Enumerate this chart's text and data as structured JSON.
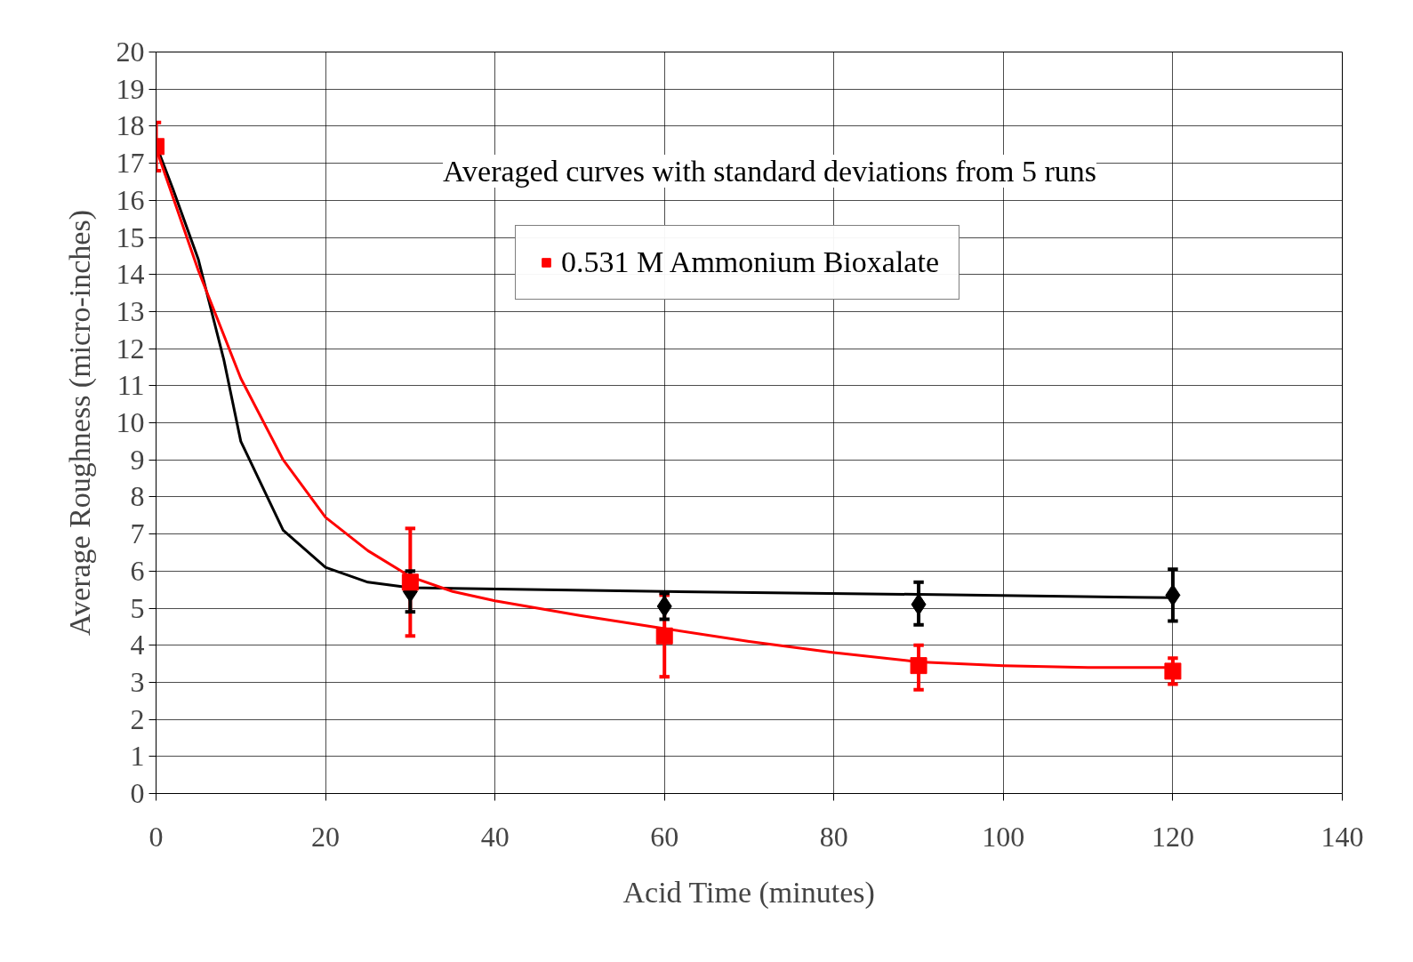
{
  "chart_data": {
    "type": "scatter",
    "xlabel": "Acid Time (minutes)",
    "ylabel": "Average Roughness (micro-inches)",
    "annotations": [
      "Averaged curves with standard deviations from 5 runs"
    ],
    "xlim": [
      0,
      140
    ],
    "xticks": [
      0,
      20,
      40,
      60,
      80,
      100,
      120,
      140
    ],
    "ylim": [
      0,
      20
    ],
    "yticks": [
      0,
      1,
      2,
      3,
      4,
      5,
      6,
      7,
      8,
      9,
      10,
      11,
      12,
      13,
      14,
      15,
      16,
      17,
      18,
      19,
      20
    ],
    "grid": true,
    "legend": "top",
    "series": [
      {
        "type": "line",
        "color": "#000000",
        "marker": "none",
        "x": [
          0,
          2,
          5,
          8,
          10,
          15,
          20,
          25,
          30,
          60,
          90,
          120
        ],
        "values": [
          17.5,
          16.3,
          14.4,
          11.7,
          9.5,
          7.1,
          6.1,
          5.7,
          5.55,
          5.45,
          5.37,
          5.28
        ]
      },
      {
        "type": "line",
        "color": "#ff0000",
        "marker": "none",
        "x": [
          0,
          5,
          10,
          15,
          20,
          25,
          30,
          35,
          40,
          50,
          60,
          70,
          80,
          90,
          100,
          110,
          120
        ],
        "values": [
          17.4,
          14.1,
          11.2,
          9.0,
          7.45,
          6.55,
          5.85,
          5.45,
          5.2,
          4.8,
          4.45,
          4.1,
          3.8,
          3.55,
          3.45,
          3.4,
          3.4
        ]
      },
      {
        "name": "0.531 M Ammonium Bioxalate",
        "color": "#ff0000",
        "marker": "square",
        "x": [
          0,
          30,
          60,
          90,
          120
        ],
        "values": [
          17.45,
          5.7,
          4.25,
          3.45,
          3.3
        ],
        "errors": [
          [
            16.8,
            18.1
          ],
          [
            4.25,
            7.15
          ],
          [
            3.15,
            5.35
          ],
          [
            2.8,
            4.0
          ],
          [
            2.95,
            3.65
          ]
        ]
      },
      {
        "color": "#000000",
        "marker": "diamond",
        "x": [
          30,
          60,
          90,
          120
        ],
        "values": [
          5.45,
          5.05,
          5.1,
          5.35
        ],
        "errors": [
          [
            4.9,
            6.0
          ],
          [
            4.7,
            5.4
          ],
          [
            4.55,
            5.7
          ],
          [
            4.65,
            6.05
          ]
        ]
      }
    ]
  }
}
